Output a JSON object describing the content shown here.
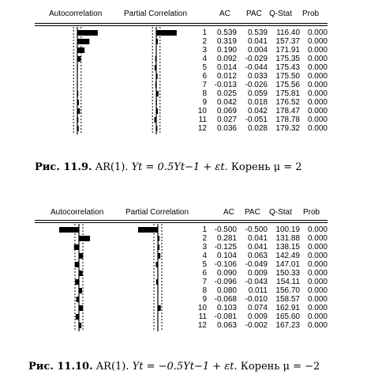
{
  "panels": [
    {
      "headers": {
        "autocorrelation": "Autocorrelation",
        "partial_correlation": "Partial Correlation",
        "ac": "AC",
        "pac": "PAC",
        "q_stat": "Q-Stat",
        "prob": "Prob"
      },
      "rows": [
        {
          "lag": "1",
          "ac": "0.539",
          "pac": "0.539",
          "q": "116.40",
          "prob": "0.000"
        },
        {
          "lag": "2",
          "ac": "0.319",
          "pac": "0.041",
          "q": "157.37",
          "prob": "0.000"
        },
        {
          "lag": "3",
          "ac": "0.190",
          "pac": "0.004",
          "q": "171.91",
          "prob": "0.000"
        },
        {
          "lag": "4",
          "ac": "0.092",
          "pac": "-0.029",
          "q": "175.35",
          "prob": "0.000"
        },
        {
          "lag": "5",
          "ac": "0.014",
          "pac": "-0.044",
          "q": "175.43",
          "prob": "0.000"
        },
        {
          "lag": "6",
          "ac": "0.012",
          "pac": "0.033",
          "q": "175.50",
          "prob": "0.000"
        },
        {
          "lag": "7",
          "ac": "-0.013",
          "pac": "-0.026",
          "q": "175.56",
          "prob": "0.000"
        },
        {
          "lag": "8",
          "ac": "0.025",
          "pac": "0.059",
          "q": "175.81",
          "prob": "0.000"
        },
        {
          "lag": "9",
          "ac": "0.042",
          "pac": "0.018",
          "q": "176.52",
          "prob": "0.000"
        },
        {
          "lag": "10",
          "ac": "0.069",
          "pac": "0.042",
          "q": "178.47",
          "prob": "0.000"
        },
        {
          "lag": "11",
          "ac": "0.027",
          "pac": "-0.051",
          "q": "178.78",
          "prob": "0.000"
        },
        {
          "lag": "12",
          "ac": "0.036",
          "pac": "0.028",
          "q": "179.32",
          "prob": "0.000"
        }
      ],
      "caption": {
        "label": "Рис. 11.9.",
        "model": "AR(1).",
        "equation": "Yt = 0.5Yt−1 + εt.",
        "root_text": "Корень μ = 2"
      }
    },
    {
      "headers": {
        "autocorrelation": "Autocorrelation",
        "partial_correlation": "Partial Correlation",
        "ac": "AC",
        "pac": "PAC",
        "q_stat": "Q-Stat",
        "prob": "Prob"
      },
      "rows": [
        {
          "lag": "1",
          "ac": "-0.500",
          "pac": "-0.500",
          "q": "100.19",
          "prob": "0.000"
        },
        {
          "lag": "2",
          "ac": "0.281",
          "pac": "0.041",
          "q": "131.88",
          "prob": "0.000"
        },
        {
          "lag": "3",
          "ac": "-0.125",
          "pac": "0.041",
          "q": "138.15",
          "prob": "0.000"
        },
        {
          "lag": "4",
          "ac": "0.104",
          "pac": "0.063",
          "q": "142.49",
          "prob": "0.000"
        },
        {
          "lag": "5",
          "ac": "-0.106",
          "pac": "-0.049",
          "q": "147.01",
          "prob": "0.000"
        },
        {
          "lag": "6",
          "ac": "0.090",
          "pac": "0.009",
          "q": "150.33",
          "prob": "0.000"
        },
        {
          "lag": "7",
          "ac": "-0.096",
          "pac": "-0.043",
          "q": "154.11",
          "prob": "0.000"
        },
        {
          "lag": "8",
          "ac": "0.080",
          "pac": "0.011",
          "q": "156.70",
          "prob": "0.000"
        },
        {
          "lag": "9",
          "ac": "-0.068",
          "pac": "-0.010",
          "q": "158.57",
          "prob": "0.000"
        },
        {
          "lag": "10",
          "ac": "0.103",
          "pac": "0.074",
          "q": "162.91",
          "prob": "0.000"
        },
        {
          "lag": "11",
          "ac": "-0.081",
          "pac": "0.009",
          "q": "165.60",
          "prob": "0.000"
        },
        {
          "lag": "12",
          "ac": "0.063",
          "pac": "-0.002",
          "q": "167.23",
          "prob": "0.000"
        }
      ],
      "caption": {
        "label": "Рис. 11.10.",
        "model": "AR(1).",
        "equation": "Yt = −0.5Yt−1 + εt.",
        "root_text": "Корень μ = −2"
      }
    }
  ]
}
